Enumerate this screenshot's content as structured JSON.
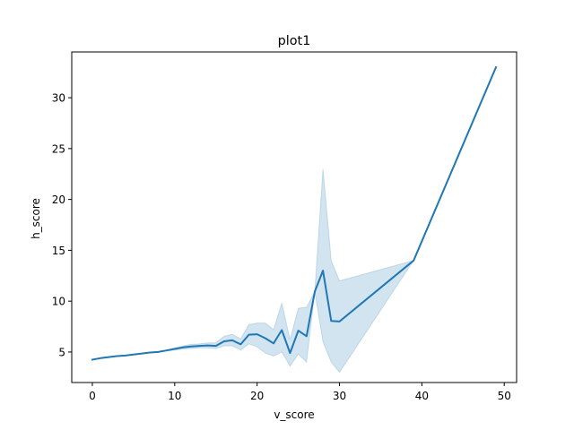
{
  "chart_data": {
    "type": "line",
    "title": "plot1",
    "xlabel": "v_score",
    "ylabel": "h_score",
    "xlim": [
      -2.5,
      51.5
    ],
    "ylim": [
      2.0,
      34.5
    ],
    "xticks": [
      0,
      10,
      20,
      30,
      40,
      50
    ],
    "yticks": [
      5,
      10,
      15,
      20,
      25,
      30
    ],
    "grid": false,
    "line_color": "#1f77b4",
    "band_color": "#1f77b4",
    "band_opacity": 0.2,
    "series": [
      {
        "x": [
          0,
          1,
          2,
          3,
          4,
          5,
          6,
          7,
          8,
          9,
          10,
          11,
          12,
          13,
          14,
          15,
          16,
          17,
          18,
          19,
          20,
          21,
          22,
          23,
          24,
          25,
          26,
          27,
          28,
          29,
          30,
          39,
          49
        ],
        "values": [
          4.25,
          4.4,
          4.5,
          4.6,
          4.65,
          4.75,
          4.85,
          4.95,
          5.0,
          5.15,
          5.3,
          5.45,
          5.55,
          5.6,
          5.65,
          5.6,
          6.05,
          6.15,
          5.75,
          6.7,
          6.75,
          6.35,
          5.85,
          7.15,
          4.9,
          7.1,
          6.55,
          10.95,
          13.0,
          8.05,
          8.0,
          14.0,
          33.0
        ],
        "ci_lower": [
          4.25,
          4.4,
          4.5,
          4.6,
          4.65,
          4.75,
          4.85,
          4.95,
          5.0,
          5.1,
          5.2,
          5.3,
          5.35,
          5.4,
          5.4,
          5.35,
          5.6,
          5.6,
          5.2,
          5.8,
          5.5,
          4.9,
          4.6,
          5.0,
          3.6,
          4.8,
          4.0,
          10.95,
          6.0,
          4.0,
          3.0,
          14.0,
          33.0
        ],
        "ci_upper": [
          4.25,
          4.4,
          4.5,
          4.6,
          4.65,
          4.75,
          4.85,
          4.95,
          5.0,
          5.2,
          5.4,
          5.6,
          5.75,
          5.8,
          5.9,
          5.9,
          6.55,
          6.75,
          6.3,
          7.7,
          7.85,
          7.85,
          7.2,
          9.8,
          6.2,
          9.3,
          9.4,
          10.95,
          23.0,
          14.0,
          12.0,
          14.0,
          33.0
        ]
      }
    ]
  }
}
